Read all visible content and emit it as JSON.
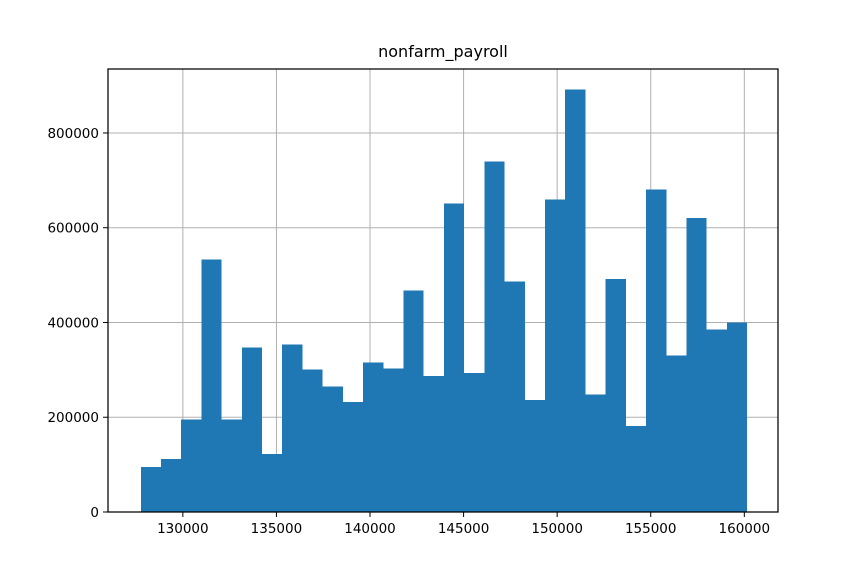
{
  "chart_data": {
    "type": "bar",
    "title": "nonfarm_payroll",
    "xlabel": "",
    "ylabel": "",
    "xlim": [
      126000,
      161800
    ],
    "ylim": [
      0,
      935000
    ],
    "grid": true,
    "bar_color": "#1f77b4",
    "x_ticks": [
      130000,
      135000,
      140000,
      145000,
      150000,
      155000,
      160000
    ],
    "x_tick_labels": [
      "130000",
      "135000",
      "140000",
      "145000",
      "150000",
      "155000",
      "160000"
    ],
    "y_ticks": [
      0,
      200000,
      400000,
      600000,
      800000
    ],
    "y_tick_labels": [
      "0",
      "200000",
      "400000",
      "600000",
      "800000"
    ],
    "bin_edges": [
      127750,
      128830,
      129910,
      130990,
      132070,
      133150,
      134230,
      135310,
      136390,
      137470,
      138550,
      139630,
      140710,
      141790,
      142870,
      143950,
      145030,
      146110,
      147190,
      148270,
      149350,
      150430,
      151510,
      152590,
      153670,
      154750,
      155830,
      156910,
      157990,
      159070,
      160150
    ],
    "values": [
      95000,
      112000,
      195000,
      533000,
      195000,
      347000,
      122000,
      354000,
      301000,
      265000,
      232000,
      316000,
      303000,
      467000,
      287000,
      651000,
      293000,
      740000,
      487000,
      236000,
      660000,
      892000,
      248000,
      492000,
      182000,
      681000,
      330000,
      620000,
      385000,
      400000
    ]
  }
}
